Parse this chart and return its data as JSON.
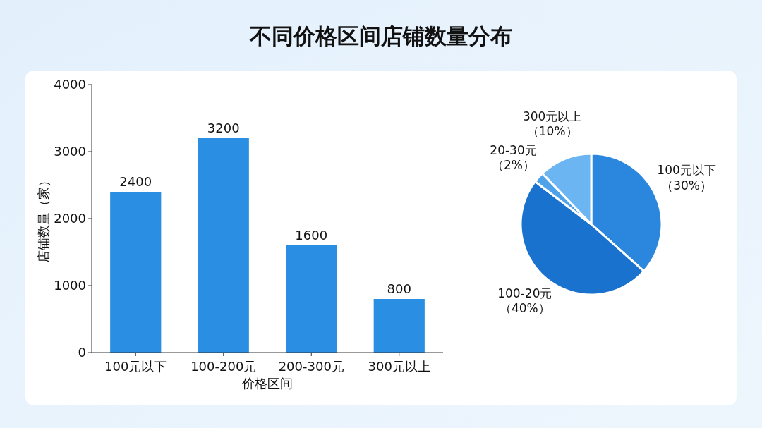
{
  "chart_data": [
    {
      "type": "bar",
      "title": "不同价格区间店铺数量分布",
      "categories": [
        "100元以下",
        "100-200元",
        "200-300元",
        "300元以上"
      ],
      "values": [
        2400,
        3200,
        1600,
        800
      ],
      "color": "#2a8fe3",
      "xlabel": "价格区间",
      "ylabel": "店铺数量（家）",
      "ylim": [
        0,
        4000
      ],
      "yticks": [
        0,
        1000,
        2000,
        3000,
        4000
      ],
      "data_labels": true,
      "grid": false
    },
    {
      "type": "pie",
      "categories": [
        "100元以下",
        "100-20元",
        "20-30元",
        "300元以上"
      ],
      "values": [
        30,
        40,
        2,
        10
      ],
      "value_labels": [
        "（30%）",
        "（40%）",
        "（2%）",
        "（10%）"
      ],
      "colors": [
        "#2b87dd",
        "#1a72cf",
        "#4da2ea",
        "#6cb5f3"
      ]
    }
  ]
}
